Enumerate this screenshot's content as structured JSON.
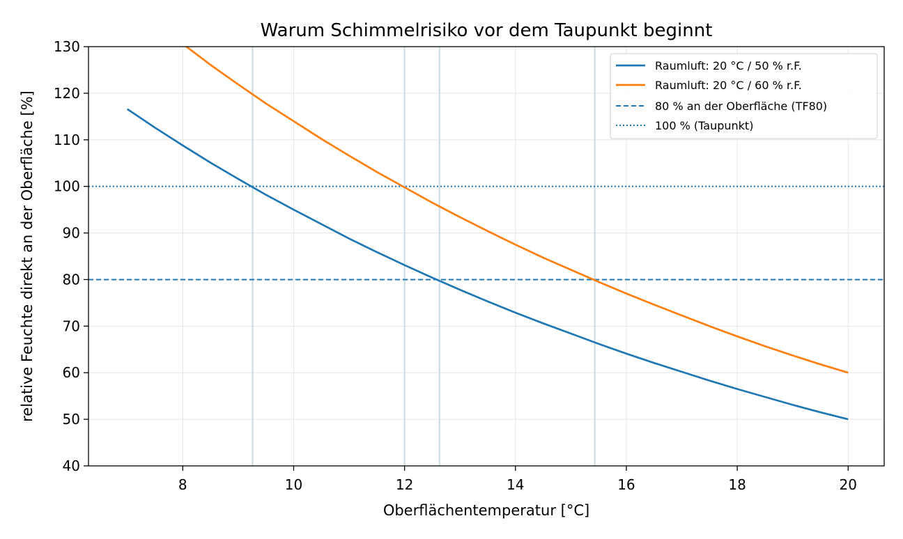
{
  "chart_data": {
    "type": "line",
    "title": "Warum Schimmelrisiko vor dem Taupunkt beginnt",
    "xlabel": "Oberflächentemperatur [°C]",
    "ylabel": "relative Feuchte direkt an der Oberfläche [%]",
    "xlim": [
      6.3,
      20.65
    ],
    "ylim": [
      40,
      130
    ],
    "xticks": [
      8,
      10,
      12,
      14,
      16,
      18,
      20
    ],
    "yticks": [
      40,
      50,
      60,
      70,
      80,
      90,
      100,
      110,
      120,
      130
    ],
    "grid": true,
    "legend_position": "top-right",
    "series": [
      {
        "name": "Raumluft: 20 °C / 50 % r.F.",
        "color": "#1f77b4",
        "x": [
          7,
          7.5,
          8,
          8.5,
          9,
          9.5,
          10,
          10.5,
          11,
          11.5,
          12,
          12.5,
          13,
          13.5,
          14,
          14.5,
          15,
          15.5,
          16,
          16.5,
          17,
          17.5,
          18,
          18.5,
          19,
          19.5,
          20
        ],
        "y": [
          116.6,
          112.6,
          108.8,
          105.1,
          101.6,
          98.2,
          95.0,
          91.9,
          88.8,
          85.9,
          83.1,
          80.4,
          77.8,
          75.3,
          72.9,
          70.6,
          68.4,
          66.2,
          64.1,
          62.1,
          60.2,
          58.3,
          56.5,
          54.8,
          53.1,
          51.5,
          50.0
        ]
      },
      {
        "name": "Raumluft: 20 °C / 60 % r.F.",
        "color": "#ff7f0e",
        "x": [
          8,
          8.5,
          9,
          9.5,
          10,
          10.5,
          11,
          11.5,
          12,
          12.5,
          13,
          13.5,
          14,
          14.5,
          15,
          15.5,
          16,
          16.5,
          17,
          17.5,
          18,
          18.5,
          19,
          19.5,
          20
        ],
        "y": [
          130.6,
          126.1,
          121.9,
          117.8,
          114.0,
          110.2,
          106.6,
          103.1,
          99.8,
          96.5,
          93.4,
          90.4,
          87.5,
          84.7,
          82.1,
          79.5,
          77.0,
          74.6,
          72.3,
          70.0,
          67.8,
          65.7,
          63.7,
          61.8,
          60.0
        ]
      }
    ],
    "hlines": [
      {
        "name": "80 % an der Oberfläche (TF80)",
        "y": 80,
        "style": "dashed",
        "color": "#1f77b4"
      },
      {
        "name": "100 % (Taupunkt)",
        "y": 100,
        "style": "dotted",
        "color": "#1f77b4"
      }
    ],
    "vlines": [
      9.26,
      12.0,
      12.63,
      15.43
    ],
    "colors": {
      "grid": "#e6e6e6",
      "vline": "#c9dbe2",
      "frame": "#000000"
    }
  }
}
